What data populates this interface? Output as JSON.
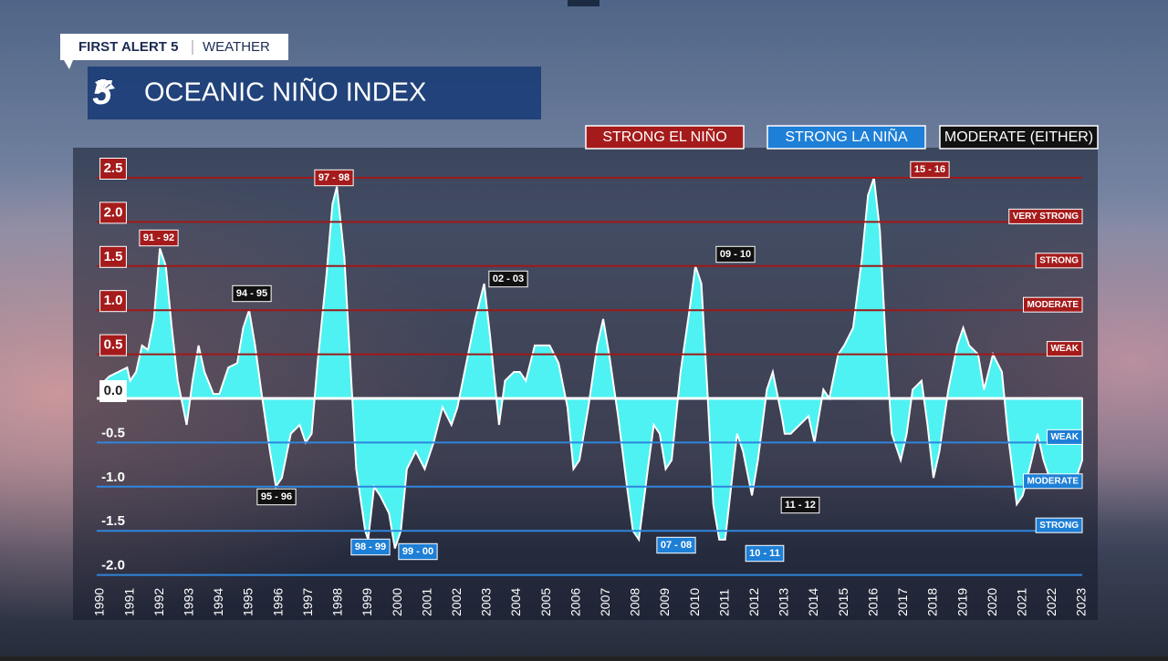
{
  "header": {
    "brand": "FIRST ALERT 5",
    "section": "WEATHER",
    "logo": "5"
  },
  "chart_data": {
    "type": "area",
    "title": "OCEANIC NIÑO INDEX",
    "color": "#4ef2f2",
    "legend": [
      {
        "name": "STRONG EL NIÑO",
        "color": "#a51b1b"
      },
      {
        "name": "STRONG LA NIÑA",
        "color": "#1e7fd6"
      },
      {
        "name": "MODERATE (EITHER)",
        "color": "#111111"
      }
    ],
    "x": [
      1990.0,
      1990.3,
      1990.6,
      1990.9,
      1991.0,
      1991.2,
      1991.4,
      1991.6,
      1991.8,
      1992.0,
      1992.2,
      1992.4,
      1992.6,
      1992.9,
      1993.1,
      1993.3,
      1993.5,
      1993.8,
      1994.0,
      1994.3,
      1994.6,
      1994.8,
      1995.0,
      1995.2,
      1995.4,
      1995.7,
      1995.9,
      1996.1,
      1996.4,
      1996.7,
      1996.9,
      1997.1,
      1997.3,
      1997.6,
      1997.8,
      1997.95,
      1998.2,
      1998.4,
      1998.6,
      1998.9,
      1999.0,
      1999.2,
      1999.4,
      1999.7,
      1999.9,
      2000.1,
      2000.3,
      2000.6,
      2000.9,
      2001.2,
      2001.5,
      2001.8,
      2002.0,
      2002.3,
      2002.6,
      2002.9,
      2003.1,
      2003.4,
      2003.6,
      2003.9,
      2004.1,
      2004.3,
      2004.6,
      2004.9,
      2005.1,
      2005.4,
      2005.7,
      2005.9,
      2006.1,
      2006.4,
      2006.7,
      2006.9,
      2007.1,
      2007.4,
      2007.7,
      2007.9,
      2008.1,
      2008.4,
      2008.6,
      2008.8,
      2009.0,
      2009.2,
      2009.5,
      2009.8,
      2010.0,
      2010.2,
      2010.4,
      2010.6,
      2010.8,
      2011.0,
      2011.2,
      2011.4,
      2011.6,
      2011.9,
      2012.1,
      2012.4,
      2012.6,
      2012.9,
      2013.0,
      2013.2,
      2013.5,
      2013.8,
      2014.0,
      2014.3,
      2014.5,
      2014.8,
      2015.0,
      2015.3,
      2015.6,
      2015.8,
      2016.0,
      2016.2,
      2016.4,
      2016.6,
      2016.9,
      2017.1,
      2017.3,
      2017.6,
      2017.8,
      2018.0,
      2018.2,
      2018.5,
      2018.8,
      2019.0,
      2019.2,
      2019.5,
      2019.7,
      2020.0,
      2020.3,
      2020.5,
      2020.8,
      2021.0,
      2021.3,
      2021.5,
      2021.7,
      2022.0,
      2022.3,
      2022.5,
      2022.7,
      2023.0
    ],
    "values": [
      0.15,
      0.25,
      0.3,
      0.35,
      0.2,
      0.3,
      0.6,
      0.55,
      0.9,
      1.7,
      1.5,
      0.8,
      0.2,
      -0.3,
      0.2,
      0.6,
      0.3,
      0.05,
      0.05,
      0.35,
      0.4,
      0.8,
      1.0,
      0.6,
      0.1,
      -0.6,
      -1.0,
      -0.9,
      -0.4,
      -0.3,
      -0.5,
      -0.4,
      0.4,
      1.4,
      2.2,
      2.4,
      1.6,
      0.4,
      -0.8,
      -1.5,
      -1.6,
      -1.0,
      -1.1,
      -1.3,
      -1.7,
      -1.5,
      -0.8,
      -0.6,
      -0.8,
      -0.5,
      -0.1,
      -0.3,
      -0.1,
      0.4,
      0.9,
      1.3,
      0.7,
      -0.3,
      0.2,
      0.3,
      0.3,
      0.2,
      0.6,
      0.6,
      0.6,
      0.4,
      -0.1,
      -0.8,
      -0.7,
      -0.1,
      0.6,
      0.9,
      0.5,
      -0.2,
      -1.0,
      -1.5,
      -1.6,
      -0.8,
      -0.3,
      -0.4,
      -0.8,
      -0.7,
      0.3,
      1.0,
      1.5,
      1.3,
      0.1,
      -1.2,
      -1.6,
      -1.6,
      -1.0,
      -0.4,
      -0.6,
      -1.1,
      -0.7,
      0.1,
      0.3,
      -0.2,
      -0.4,
      -0.4,
      -0.3,
      -0.2,
      -0.5,
      0.1,
      0.0,
      0.5,
      0.6,
      0.8,
      1.6,
      2.3,
      2.5,
      1.9,
      0.6,
      -0.4,
      -0.7,
      -0.4,
      0.1,
      0.2,
      -0.3,
      -0.9,
      -0.6,
      0.1,
      0.6,
      0.8,
      0.6,
      0.5,
      0.1,
      0.5,
      0.3,
      -0.4,
      -1.2,
      -1.1,
      -0.7,
      -0.4,
      -0.7,
      -1.0,
      -1.0,
      -0.9,
      -1.0,
      -0.7
    ],
    "xlim": [
      1990,
      2023
    ],
    "xticks": [
      1990,
      1991,
      1992,
      1993,
      1994,
      1995,
      1996,
      1997,
      1998,
      1999,
      2000,
      2001,
      2002,
      2003,
      2004,
      2005,
      2006,
      2007,
      2008,
      2009,
      2010,
      2011,
      2012,
      2013,
      2014,
      2015,
      2016,
      2017,
      2018,
      2019,
      2020,
      2021,
      2022,
      2023
    ],
    "ylim": [
      -2,
      2.5
    ],
    "yticks": [
      2.5,
      {
        "value": 2,
        "label": "2.0"
      },
      1.5,
      {
        "value": 1,
        "label": "1.0"
      },
      0.5,
      {
        "value": 0,
        "label": "0.0"
      },
      -0.5,
      {
        "value": -1,
        "label": "-1.0"
      },
      -1.5,
      {
        "value": -2,
        "label": "-2.0"
      }
    ],
    "grid": true,
    "thresholds": [
      {
        "value": 2,
        "label": "VERY STRONG"
      },
      {
        "value": 1.5,
        "label": "STRONG"
      },
      {
        "value": 1,
        "label": "MODERATE"
      },
      {
        "value": 0.5,
        "label": "WEAK"
      },
      {
        "value": -0.5,
        "label": "WEAK"
      },
      {
        "value": -1,
        "label": "MODERATE"
      },
      {
        "value": -1.5,
        "label": "STRONG"
      }
    ],
    "annotations": [
      {
        "text": "91 - 92",
        "color": "#a51b1b"
      },
      {
        "text": "97 - 98",
        "color": "#a51b1b"
      },
      {
        "text": "94 - 95",
        "color": "#111111"
      },
      {
        "text": "02 - 03",
        "color": "#111111"
      },
      {
        "text": "09 - 10",
        "color": "#111111"
      },
      {
        "text": "15 - 16",
        "color": "#a51b1b"
      },
      {
        "text": "95 - 96",
        "color": "#111111"
      },
      {
        "text": "98 - 99",
        "color": "#1e7fd6"
      },
      {
        "text": "99 - 00",
        "color": "#1e7fd6"
      },
      {
        "text": "07 - 08",
        "color": "#1e7fd6"
      },
      {
        "text": "10 - 11",
        "color": "#1e7fd6"
      },
      {
        "text": "11 - 12",
        "color": "#111111"
      }
    ]
  }
}
